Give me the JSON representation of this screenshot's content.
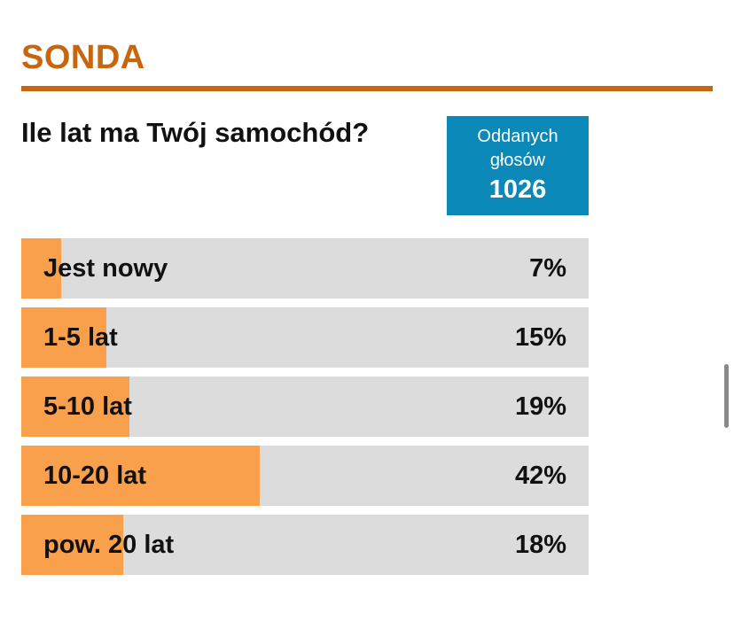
{
  "header": {
    "title": "SONDA"
  },
  "poll": {
    "question": "Ile lat ma Twój samochód?",
    "votes_label": "Oddanych głosów",
    "votes_count": "1026",
    "options": [
      {
        "label": "Jest nowy",
        "percent_text": "7%",
        "share": 0.07
      },
      {
        "label": "1-5 lat",
        "percent_text": "15%",
        "share": 0.15
      },
      {
        "label": "5-10 lat",
        "percent_text": "19%",
        "share": 0.19
      },
      {
        "label": "10-20 lat",
        "percent_text": "42%",
        "share": 0.42
      },
      {
        "label": "pow. 20 lat",
        "percent_text": "18%",
        "share": 0.18
      }
    ]
  },
  "colors": {
    "accent": "#c8650f",
    "votes_box": "#0a88b8",
    "bar_fill": "#f8a04c",
    "bar_track": "#dcdcdc"
  }
}
